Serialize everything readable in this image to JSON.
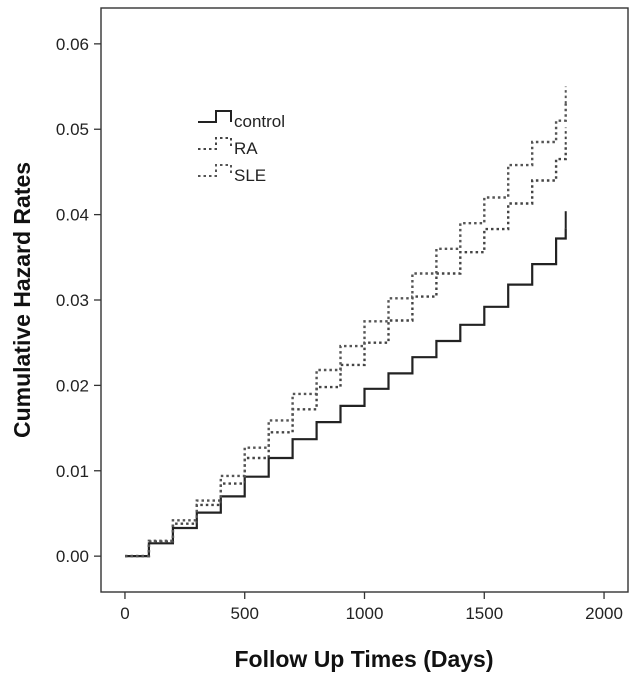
{
  "chart_data": {
    "type": "line",
    "title": "",
    "xlabel": "Follow Up Times (Days)",
    "ylabel": "Cumulative Hazard Rates",
    "xlim": [
      -100,
      2100
    ],
    "ylim": [
      -0.0042,
      0.0642
    ],
    "x_ticks": [
      0,
      500,
      1000,
      1500,
      2000
    ],
    "x_tick_labels": [
      "0",
      "500",
      "1000",
      "1500",
      "2000"
    ],
    "y_ticks": [
      0.0,
      0.01,
      0.02,
      0.03,
      0.04,
      0.05,
      0.06
    ],
    "y_tick_labels": [
      "0.00",
      "0.01",
      "0.02",
      "0.03",
      "0.04",
      "0.05",
      "0.06"
    ],
    "grid": false,
    "legend_position": "top-left",
    "series": [
      {
        "name": "control",
        "style": "solid",
        "color": "#222222",
        "x": [
          0,
          100,
          200,
          300,
          400,
          500,
          600,
          700,
          800,
          900,
          1000,
          1100,
          1200,
          1300,
          1400,
          1500,
          1600,
          1700,
          1800,
          1840
        ],
        "y": [
          0.0,
          0.0015,
          0.0033,
          0.0051,
          0.007,
          0.0093,
          0.0115,
          0.0137,
          0.0157,
          0.0176,
          0.0196,
          0.0214,
          0.0233,
          0.0252,
          0.0271,
          0.0292,
          0.0318,
          0.0342,
          0.0372,
          0.0384
        ],
        "end_tick": [
          0.0384,
          0.0404
        ]
      },
      {
        "name": "RA",
        "style": "dotted",
        "color": "#444444",
        "x": [
          0,
          100,
          200,
          300,
          400,
          500,
          600,
          700,
          800,
          900,
          1000,
          1100,
          1200,
          1300,
          1400,
          1500,
          1600,
          1700,
          1800,
          1840
        ],
        "y": [
          0.0,
          0.0017,
          0.0038,
          0.006,
          0.0085,
          0.0115,
          0.0145,
          0.0172,
          0.0198,
          0.0224,
          0.025,
          0.0276,
          0.0304,
          0.0331,
          0.0356,
          0.0383,
          0.0413,
          0.044,
          0.0465,
          0.0482
        ],
        "end_tick": [
          0.0482,
          0.0502
        ]
      },
      {
        "name": "SLE",
        "style": "dotted",
        "color": "#555555",
        "x": [
          0,
          100,
          200,
          300,
          400,
          500,
          600,
          700,
          800,
          900,
          1000,
          1100,
          1200,
          1300,
          1400,
          1500,
          1600,
          1700,
          1800,
          1840
        ],
        "y": [
          0.0,
          0.0018,
          0.0042,
          0.0065,
          0.0094,
          0.0127,
          0.0159,
          0.019,
          0.0218,
          0.0246,
          0.0275,
          0.0302,
          0.0331,
          0.036,
          0.039,
          0.042,
          0.0458,
          0.0485,
          0.051,
          0.053
        ],
        "end_tick": [
          0.053,
          0.055
        ]
      }
    ]
  }
}
